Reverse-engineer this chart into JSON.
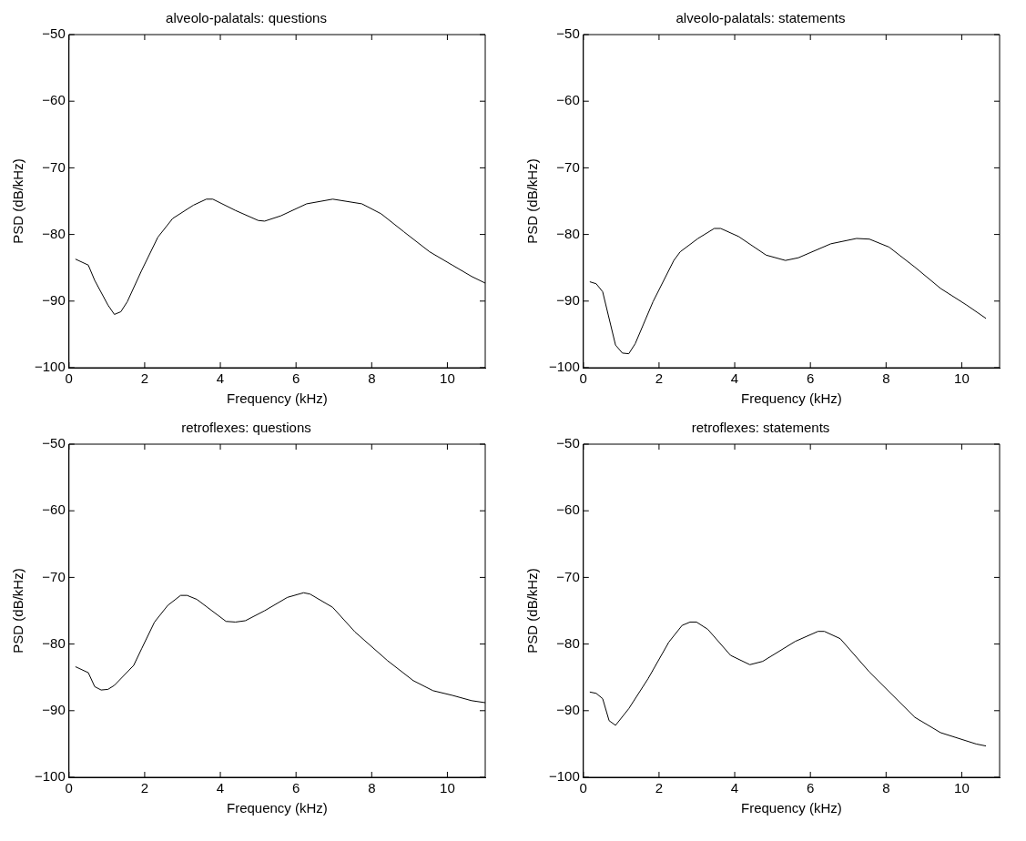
{
  "chart_data": [
    {
      "type": "line",
      "title": "alveolo-palatals: questions",
      "xlabel": "Frequency (kHz)",
      "ylabel": "PSD (dB/kHz)",
      "color": "#000000",
      "xlim": [
        0,
        11
      ],
      "xticks": [
        0,
        2,
        4,
        6,
        8,
        10
      ],
      "ylim": [
        -100,
        -50
      ],
      "yticks": [
        -100,
        -90,
        -80,
        -70,
        -60,
        -50
      ],
      "marker": "none",
      "line_style": "solid",
      "x": [
        0.17,
        0.51,
        0.68,
        1.03,
        1.2,
        1.37,
        1.54,
        1.92,
        2.35,
        2.74,
        3.29,
        3.63,
        3.8,
        4.4,
        5.0,
        5.17,
        5.6,
        6.28,
        6.97,
        7.74,
        8.25,
        8.85,
        9.53,
        10.13,
        10.64,
        11
      ],
      "values": [
        -83.7,
        -84.6,
        -86.9,
        -90.6,
        -92.0,
        -91.6,
        -90.1,
        -85.4,
        -80.4,
        -77.6,
        -75.6,
        -74.7,
        -74.7,
        -76.4,
        -77.9,
        -78.0,
        -77.2,
        -75.4,
        -74.7,
        -75.4,
        -76.9,
        -79.6,
        -82.6,
        -84.6,
        -86.3,
        -87.3
      ]
    },
    {
      "type": "line",
      "title": "alveolo-palatals: statements",
      "xlabel": "Frequency (kHz)",
      "ylabel": "PSD (dB/kHz)",
      "color": "#000000",
      "xlim": [
        0,
        11
      ],
      "xticks": [
        0,
        2,
        4,
        6,
        8,
        10
      ],
      "ylim": [
        -100,
        -50
      ],
      "yticks": [
        -100,
        -90,
        -80,
        -70,
        -60,
        -50
      ],
      "marker": "none",
      "line_style": "solid",
      "x": [
        0.17,
        0.34,
        0.51,
        0.85,
        1.03,
        1.2,
        1.37,
        1.84,
        2.39,
        2.56,
        3.03,
        3.46,
        3.63,
        4.1,
        4.83,
        5.34,
        5.68,
        6.54,
        7.22,
        7.56,
        8.08,
        8.76,
        9.44,
        10.13,
        10.64
      ],
      "values": [
        -87.1,
        -87.4,
        -88.6,
        -96.6,
        -97.8,
        -97.9,
        -96.4,
        -90.1,
        -83.9,
        -82.6,
        -80.6,
        -79.1,
        -79.1,
        -80.3,
        -83.1,
        -83.9,
        -83.5,
        -81.4,
        -80.6,
        -80.7,
        -81.9,
        -84.9,
        -88.1,
        -90.6,
        -92.6
      ]
    },
    {
      "type": "line",
      "title": "retroflexes: questions",
      "xlabel": "Frequency (kHz)",
      "ylabel": "PSD (dB/kHz)",
      "color": "#000000",
      "xlim": [
        0,
        11
      ],
      "xticks": [
        0,
        2,
        4,
        6,
        8,
        10
      ],
      "ylim": [
        -100,
        -50
      ],
      "yticks": [
        -100,
        -90,
        -80,
        -70,
        -60,
        -50
      ],
      "marker": "none",
      "line_style": "solid",
      "x": [
        0.17,
        0.51,
        0.68,
        0.85,
        1.03,
        1.2,
        1.71,
        1.92,
        2.26,
        2.61,
        2.95,
        3.12,
        3.38,
        4.15,
        4.4,
        4.66,
        5.17,
        5.77,
        6.2,
        6.37,
        6.97,
        7.56,
        8.42,
        9.1,
        9.62,
        10.13,
        10.64,
        11
      ],
      "values": [
        -83.4,
        -84.3,
        -86.4,
        -86.9,
        -86.8,
        -86.2,
        -83.2,
        -80.7,
        -76.7,
        -74.2,
        -72.7,
        -72.7,
        -73.3,
        -76.6,
        -76.7,
        -76.5,
        -75.0,
        -73.0,
        -72.3,
        -72.5,
        -74.5,
        -78.2,
        -82.5,
        -85.5,
        -87.0,
        -87.7,
        -88.5,
        -88.8
      ]
    },
    {
      "type": "line",
      "title": "retroflexes: statements",
      "xlabel": "Frequency (kHz)",
      "ylabel": "PSD (dB/kHz)",
      "color": "#000000",
      "xlim": [
        0,
        11
      ],
      "xticks": [
        0,
        2,
        4,
        6,
        8,
        10
      ],
      "ylim": [
        -100,
        -50
      ],
      "yticks": [
        -100,
        -90,
        -80,
        -70,
        -60,
        -50
      ],
      "marker": "none",
      "line_style": "solid",
      "x": [
        0.17,
        0.34,
        0.51,
        0.68,
        0.85,
        1.2,
        1.71,
        2.26,
        2.61,
        2.82,
        2.99,
        3.29,
        3.89,
        4.4,
        4.74,
        5.6,
        6.2,
        6.37,
        6.79,
        7.56,
        8.76,
        9.44,
        10.38,
        10.64
      ],
      "values": [
        -87.2,
        -87.4,
        -88.2,
        -91.5,
        -92.2,
        -89.7,
        -85.2,
        -79.7,
        -77.2,
        -76.7,
        -76.7,
        -77.8,
        -81.7,
        -83.1,
        -82.6,
        -79.6,
        -78.1,
        -78.1,
        -79.2,
        -84.2,
        -91.0,
        -93.3,
        -95.0,
        -95.3
      ]
    }
  ]
}
